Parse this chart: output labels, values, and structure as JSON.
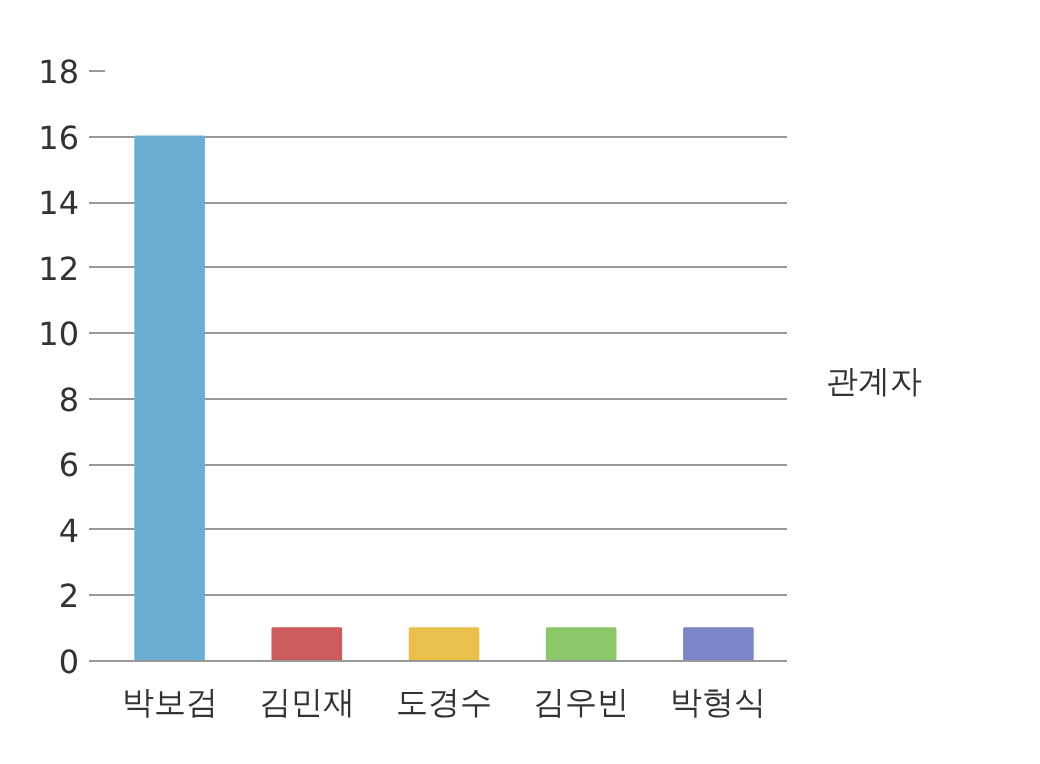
{
  "chart_data": {
    "type": "bar",
    "legend_title": "관계자",
    "categories": [
      "박보검",
      "김민재",
      "도경수",
      "김우빈",
      "박형식"
    ],
    "values": [
      16,
      1,
      1,
      1,
      1
    ],
    "colors": [
      "#6aaed3",
      "#cc5c5c",
      "#e8c04a",
      "#8cc86a",
      "#7b86c8"
    ],
    "ylim": [
      0,
      18
    ],
    "yticks": [
      0,
      2,
      4,
      6,
      8,
      10,
      12,
      14,
      16,
      18
    ],
    "grid": "y"
  }
}
